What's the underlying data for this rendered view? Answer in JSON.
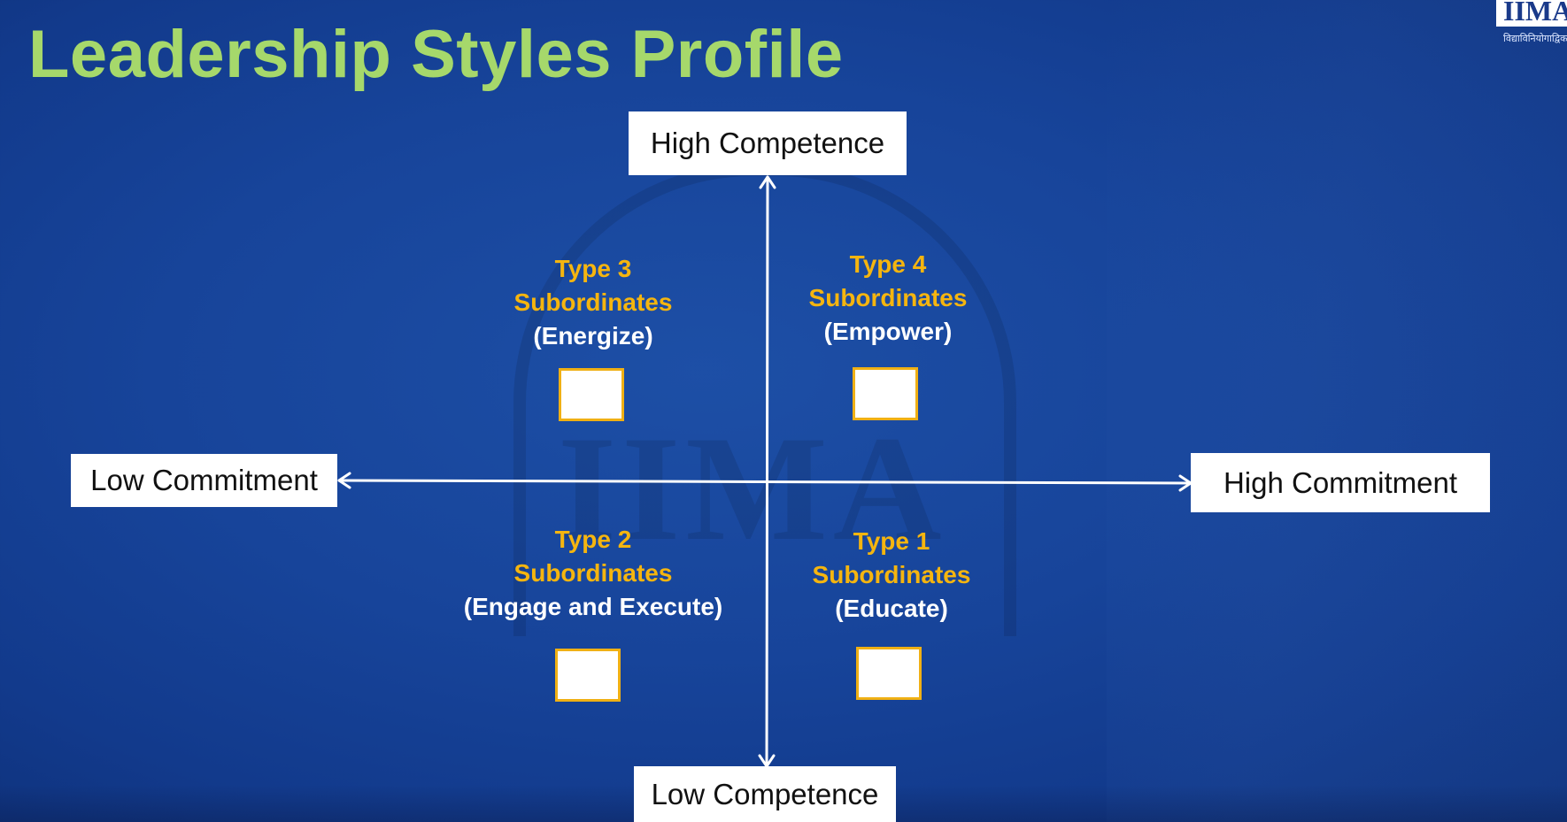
{
  "slide": {
    "title": "Leadership Styles Profile",
    "logo": {
      "text": "IIMA",
      "tagline": "विद्याविनियोगाद्विकासः"
    },
    "watermark_text": "IIMA",
    "colors": {
      "background": "#17449a",
      "title": "#a6d86b",
      "type_label": "#f5b50f",
      "action_label": "#ffffff",
      "box_border": "#f0b014"
    }
  },
  "axes": {
    "top": "High Competence",
    "bottom": "Low Competence",
    "left": "Low Commitment",
    "right": "High Commitment"
  },
  "quadrants": {
    "top_left": {
      "type": "Type 3",
      "subtitle": "Subordinates",
      "action": "(Energize)"
    },
    "top_right": {
      "type": "Type 4",
      "subtitle": "Subordinates",
      "action": "(Empower)"
    },
    "bottom_left": {
      "type": "Type 2",
      "subtitle": "Subordinates",
      "action": "(Engage and Execute)"
    },
    "bottom_right": {
      "type": "Type 1",
      "subtitle": "Subordinates",
      "action": "(Educate)"
    }
  }
}
